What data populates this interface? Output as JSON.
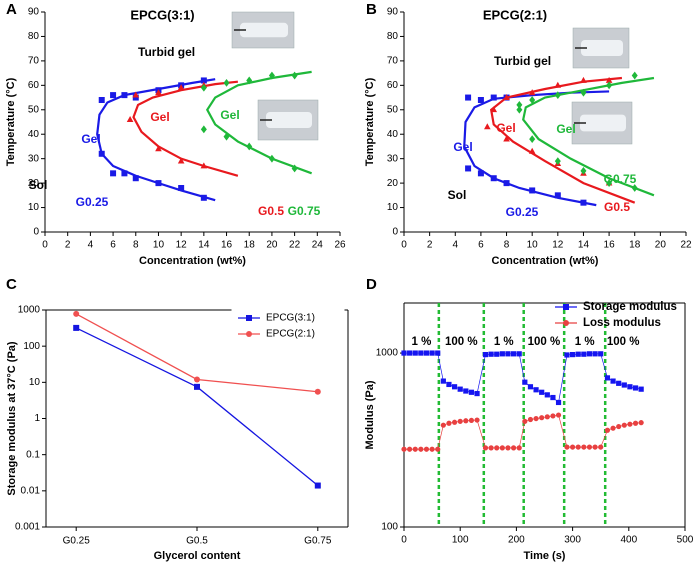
{
  "chart_data": [
    {
      "type": "scatter",
      "panel": "A",
      "title": "EPCG(3:1)",
      "x_label": "Concentration (wt%)",
      "y_label": "Temperature (°C)",
      "xlim": [
        0,
        26
      ],
      "xticks": [
        0,
        2,
        4,
        6,
        8,
        10,
        12,
        14,
        16,
        18,
        20,
        22,
        24,
        26
      ],
      "ylim": [
        0,
        90
      ],
      "yticks": [
        0,
        10,
        20,
        30,
        40,
        50,
        60,
        70,
        80,
        90
      ],
      "series": [
        {
          "name": "G0.25",
          "color": "#1a1ae6",
          "marker": "square",
          "x": [
            5,
            6,
            7,
            8,
            10,
            12,
            14,
            5,
            6,
            7,
            8,
            10,
            12,
            14
          ],
          "y": [
            32,
            24,
            24,
            22,
            20,
            18,
            14,
            54,
            56,
            56,
            55,
            58,
            60,
            62
          ],
          "fit_x": [
            15,
            12,
            10,
            8,
            6,
            5,
            4.6,
            4.8,
            5.5,
            7,
            10,
            13,
            15
          ],
          "fit_y": [
            13,
            17,
            20,
            23,
            27,
            32,
            40,
            48,
            53,
            56,
            58.5,
            61,
            62.5
          ]
        },
        {
          "name": "G0.5",
          "color": "#e8191e",
          "marker": "triangle",
          "x": [
            7.5,
            10,
            12,
            14,
            8,
            10,
            12,
            14
          ],
          "y": [
            46,
            34,
            29,
            27,
            56,
            57,
            59,
            60
          ],
          "fit_x": [
            17,
            14,
            12,
            10,
            8.5,
            7.8,
            8.2,
            9.5,
            12,
            15,
            17
          ],
          "fit_y": [
            23,
            27,
            30,
            35,
            41,
            47,
            52,
            55,
            58,
            60.5,
            61.5
          ]
        },
        {
          "name": "G0.75",
          "color": "#1fb83a",
          "marker": "diamond",
          "x": [
            14,
            16,
            18,
            20,
            22,
            14,
            16,
            18,
            20,
            22
          ],
          "y": [
            42,
            39,
            35,
            30,
            26,
            59,
            61,
            62,
            64,
            64
          ],
          "fit_x": [
            23.5,
            20,
            17,
            15,
            14.3,
            15,
            17,
            20,
            23.5
          ],
          "fit_y": [
            24,
            30,
            37,
            44,
            50,
            55,
            60,
            63,
            65.5
          ]
        }
      ],
      "annotations": [
        {
          "text": "Turbid gel",
          "color": "#000000"
        },
        {
          "text": "Gel",
          "color": "#1a1ae6"
        },
        {
          "text": "Gel",
          "color": "#e8191e"
        },
        {
          "text": "Gel",
          "color": "#1fb83a"
        },
        {
          "text": "Sol",
          "color": "#000000"
        }
      ]
    },
    {
      "type": "scatter",
      "panel": "B",
      "title": "EPCG(2:1)",
      "x_label": "Concentration (wt%)",
      "y_label": "Temperature (°C)",
      "xlim": [
        0,
        22
      ],
      "xticks": [
        0,
        2,
        4,
        6,
        8,
        10,
        12,
        14,
        16,
        18,
        20,
        22
      ],
      "ylim": [
        0,
        90
      ],
      "yticks": [
        0,
        10,
        20,
        30,
        40,
        50,
        60,
        70,
        80,
        90
      ],
      "series": [
        {
          "name": "G0.25",
          "color": "#1a1ae6",
          "marker": "square",
          "x": [
            5,
            6,
            7,
            8,
            10,
            12,
            14,
            5,
            6,
            7,
            8
          ],
          "y": [
            26,
            24,
            22,
            20,
            17,
            15,
            12,
            55,
            54,
            55,
            55
          ],
          "fit_x": [
            15,
            12,
            9,
            7,
            5.5,
            4.7,
            4.8,
            5.5,
            7,
            10,
            13,
            16
          ],
          "fit_y": [
            11,
            14,
            18,
            22,
            27,
            35,
            45,
            51,
            54.5,
            56,
            57,
            57.5
          ]
        },
        {
          "name": "G0.5",
          "color": "#e8191e",
          "marker": "triangle",
          "x": [
            6.5,
            8,
            10,
            12,
            14,
            16,
            7,
            8,
            10,
            12,
            14,
            16
          ],
          "y": [
            43,
            38,
            33,
            28,
            24,
            20,
            50,
            55,
            57,
            60,
            62,
            62
          ],
          "fit_x": [
            18,
            14,
            11,
            8.5,
            7,
            6.8,
            8,
            11,
            14,
            17
          ],
          "fit_y": [
            12,
            20,
            29,
            37,
            44,
            50,
            55,
            58.5,
            61.5,
            63
          ]
        },
        {
          "name": "G0.75",
          "color": "#1fb83a",
          "marker": "diamond",
          "x": [
            9,
            10,
            12,
            14,
            16,
            18,
            9,
            10,
            12,
            14,
            16,
            18
          ],
          "y": [
            50,
            38,
            29,
            25,
            20,
            18,
            52,
            54,
            56,
            57,
            60,
            64
          ],
          "fit_x": [
            19.5,
            16,
            13,
            10.5,
            9.3,
            9.5,
            11,
            14,
            17,
            19.5
          ],
          "fit_y": [
            15,
            22,
            30,
            38,
            46,
            51,
            55,
            58,
            61,
            63
          ]
        }
      ],
      "annotations": [
        {
          "text": "Turbid gel",
          "color": "#000000"
        },
        {
          "text": "Gel",
          "color": "#1a1ae6"
        },
        {
          "text": "Gel",
          "color": "#e8191e"
        },
        {
          "text": "Gel",
          "color": "#1fb83a"
        },
        {
          "text": "Sol",
          "color": "#000000"
        }
      ]
    },
    {
      "type": "line",
      "panel": "C",
      "x_label": "Glycerol content",
      "y_label": "Storage modulus at 37°C (Pa)",
      "log_y": true,
      "box": true,
      "categories": [
        "G0.25",
        "G0.5",
        "G0.75"
      ],
      "ylim": [
        0.001,
        1000
      ],
      "yticks": [
        0.001,
        0.01,
        0.1,
        1,
        10,
        100,
        1000
      ],
      "series": [
        {
          "name": "EPCG(3:1)",
          "color": "#1515e0",
          "marker": "square",
          "values": [
            320,
            7.5,
            0.014
          ]
        },
        {
          "name": "EPCG(2:1)",
          "color": "#f05050",
          "marker": "circle",
          "values": [
            780,
            12,
            5.5
          ]
        }
      ]
    },
    {
      "type": "line",
      "panel": "D",
      "x_label": "Time (s)",
      "y_label": "Modulus (Pa)",
      "log_y": true,
      "box": true,
      "xlim": [
        0,
        500
      ],
      "xticks": [
        0,
        100,
        200,
        300,
        400,
        500
      ],
      "ylim": [
        100,
        1940
      ],
      "yticks": [
        100,
        1000
      ],
      "x": [
        0,
        10,
        20,
        30,
        40,
        50,
        60,
        70,
        80,
        90,
        100,
        110,
        120,
        130,
        145,
        155,
        165,
        175,
        185,
        195,
        205,
        215,
        225,
        235,
        245,
        255,
        265,
        275,
        290,
        300,
        310,
        320,
        330,
        340,
        350,
        362,
        372,
        382,
        392,
        402,
        412,
        422
      ],
      "series": [
        {
          "name": "Storage modulus",
          "color": "#1515f0",
          "marker": "square",
          "values": [
            1000,
            1000,
            1000,
            1000,
            1000,
            1000,
            1000,
            690,
            660,
            640,
            620,
            605,
            595,
            585,
            980,
            985,
            985,
            990,
            990,
            990,
            990,
            680,
            640,
            615,
            595,
            575,
            555,
            520,
            975,
            980,
            985,
            985,
            990,
            990,
            990,
            720,
            690,
            670,
            655,
            640,
            630,
            620
          ]
        },
        {
          "name": "Loss modulus",
          "color": "#e84040",
          "marker": "circle",
          "values": [
            280,
            280,
            280,
            280,
            280,
            280,
            280,
            385,
            395,
            400,
            405,
            408,
            410,
            412,
            285,
            285,
            285,
            285,
            285,
            285,
            285,
            405,
            415,
            420,
            425,
            430,
            435,
            440,
            288,
            288,
            288,
            288,
            288,
            288,
            288,
            360,
            370,
            378,
            385,
            390,
            395,
            398
          ]
        }
      ],
      "vlines": [
        62,
        142,
        213,
        285,
        358
      ],
      "vline_color": "#22bb33",
      "annotations": [
        {
          "text": "1 %"
        },
        {
          "text": "100 %"
        },
        {
          "text": "1 %"
        },
        {
          "text": "100 %"
        },
        {
          "text": "1 %"
        },
        {
          "text": "100 %"
        }
      ]
    }
  ]
}
